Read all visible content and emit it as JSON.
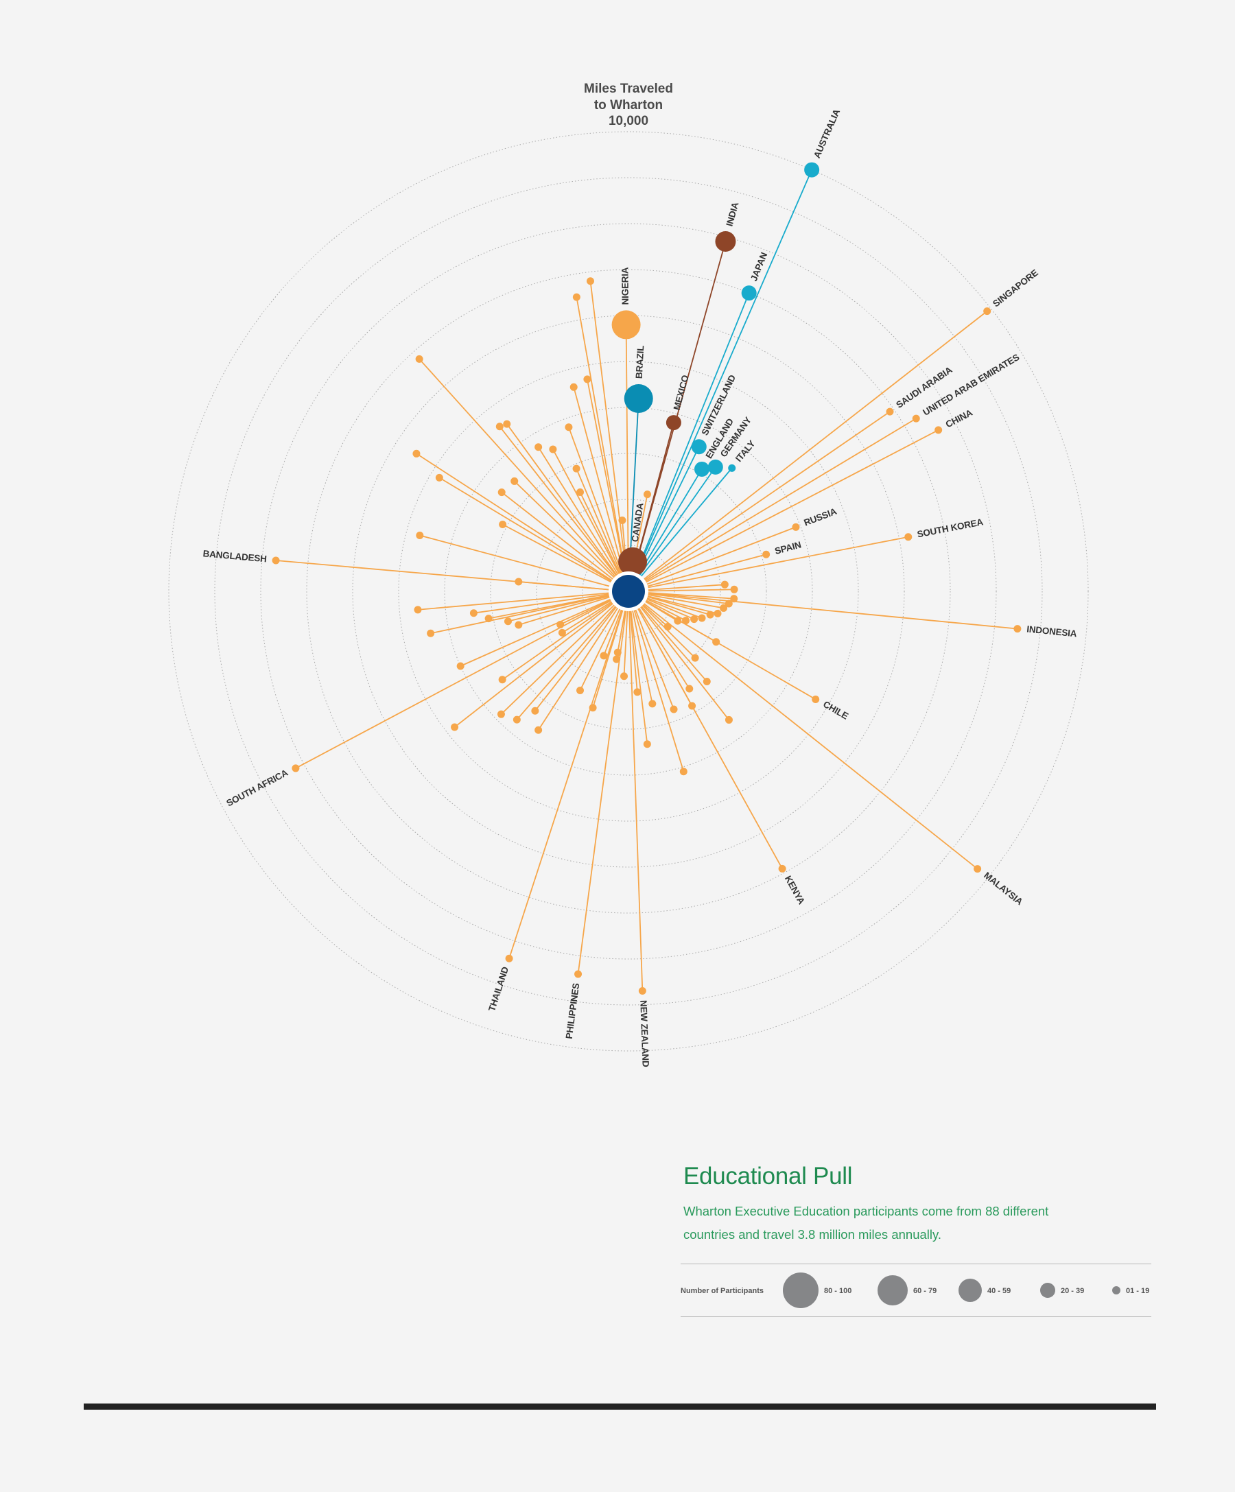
{
  "chart_data": {
    "type": "radial-dot-plot",
    "title_lines": [
      "Miles Traveled",
      "to Wharton",
      "10,000"
    ],
    "radial_axis": {
      "max_miles": 10000,
      "rings": 10,
      "grid": "dotted"
    },
    "colors": {
      "center": "#0a4585",
      "default": "#f6a64a",
      "canada": "#8e4528",
      "brazil": "#0a8db3",
      "nigeria": "#f6a64a",
      "mexico": "#8e4528",
      "india": "#8e4528",
      "japan": "#18abcc",
      "switzerland": "#18abcc",
      "england": "#18abcc",
      "germany": "#18abcc",
      "italy": "#18abcc",
      "australia": "#18abcc"
    },
    "labeled_points": [
      {
        "label": "CANADA",
        "bearing": 8,
        "miles": 650,
        "size": "80-100",
        "color": "canada"
      },
      {
        "label": "BRAZIL",
        "bearing": 3,
        "miles": 4200,
        "size": "80-100",
        "color": "brazil"
      },
      {
        "label": "NIGERIA",
        "bearing": -0.5,
        "miles": 5800,
        "size": "80-100",
        "color": "nigeria"
      },
      {
        "label": "MEXICO",
        "bearing": 15,
        "miles": 3800,
        "size": "20-39",
        "color": "mexico"
      },
      {
        "label": "INDIA",
        "bearing": 15.5,
        "miles": 7900,
        "size": "40-59",
        "color": "india"
      },
      {
        "label": "JAPAN",
        "bearing": 22,
        "miles": 7000,
        "size": "20-39",
        "color": "japan"
      },
      {
        "label": "SWITZERLAND",
        "bearing": 26,
        "miles": 3500,
        "size": "20-39",
        "color": "switzerland"
      },
      {
        "label": "ENGLAND",
        "bearing": 31,
        "miles": 3100,
        "size": "20-39",
        "color": "england"
      },
      {
        "label": "GERMANY",
        "bearing": 35,
        "miles": 3300,
        "size": "20-39",
        "color": "germany"
      },
      {
        "label": "ITALY",
        "bearing": 40,
        "miles": 3500,
        "size": "01-19",
        "color": "italy"
      },
      {
        "label": "AUSTRALIA",
        "bearing": 23.5,
        "miles": 10000,
        "size": "20-39",
        "color": "australia"
      },
      {
        "label": "SINGAPORE",
        "bearing": 52,
        "miles": 9900,
        "size": "01-19"
      },
      {
        "label": "SAUDI ARABIA",
        "bearing": 55.5,
        "miles": 6900,
        "size": "01-19"
      },
      {
        "label": "UNITED ARAB EMIRATES",
        "bearing": 59,
        "miles": 7300,
        "size": "01-19"
      },
      {
        "label": "CHINA",
        "bearing": 62.5,
        "miles": 7600,
        "size": "01-19"
      },
      {
        "label": "RUSSIA",
        "bearing": 69,
        "miles": 3900,
        "size": "01-19"
      },
      {
        "label": "SPAIN",
        "bearing": 75,
        "miles": 3100,
        "size": "01-19"
      },
      {
        "label": "SOUTH KOREA",
        "bearing": 79,
        "miles": 6200,
        "size": "01-19"
      },
      {
        "label": "INDONESIA",
        "bearing": 95.5,
        "miles": 8500,
        "size": "01-19"
      },
      {
        "label": "CHILE",
        "bearing": 120,
        "miles": 4700,
        "size": "01-19"
      },
      {
        "label": "MALAYSIA",
        "bearing": 128.5,
        "miles": 9700,
        "size": "01-19"
      },
      {
        "label": "KENYA",
        "bearing": 151,
        "miles": 6900,
        "size": "01-19"
      },
      {
        "label": "NEW ZEALAND",
        "bearing": 178,
        "miles": 8700,
        "size": "01-19"
      },
      {
        "label": "PHILIPPINES",
        "bearing": 187.5,
        "miles": 8400,
        "size": "01-19"
      },
      {
        "label": "THAILAND",
        "bearing": 198,
        "miles": 8400,
        "size": "01-19"
      },
      {
        "label": "SOUTH AFRICA",
        "bearing": 242,
        "miles": 8200,
        "size": "01-19"
      },
      {
        "label": "BANGLADESH",
        "bearing": 275,
        "miles": 7700,
        "size": "01-19"
      }
    ],
    "unlabeled_points": [
      [
        11,
        2150
      ],
      [
        86,
        2100
      ],
      [
        89,
        2300
      ],
      [
        94,
        2300
      ],
      [
        97,
        2200
      ],
      [
        100,
        2100
      ],
      [
        104,
        2000
      ],
      [
        106,
        1850
      ],
      [
        110,
        1700
      ],
      [
        113,
        1550
      ],
      [
        117,
        1400
      ],
      [
        121,
        1250
      ],
      [
        132,
        1150
      ],
      [
        135,
        2050
      ],
      [
        139,
        2600
      ],
      [
        142,
        3550
      ],
      [
        148,
        2500
      ],
      [
        151,
        2850
      ],
      [
        159,
        2750
      ],
      [
        163,
        4100
      ],
      [
        168,
        2500
      ],
      [
        173,
        3350
      ],
      [
        175,
        2200
      ],
      [
        183,
        1850
      ],
      [
        190,
        1350
      ],
      [
        197,
        2650
      ],
      [
        201,
        1500
      ],
      [
        206,
        2400
      ],
      [
        213,
        3600
      ],
      [
        218,
        3300
      ],
      [
        221,
        3700
      ],
      [
        226,
        3850
      ],
      [
        232,
        4800
      ],
      [
        235,
        3350
      ],
      [
        238,
        1700
      ],
      [
        244,
        1650
      ],
      [
        246,
        4000
      ],
      [
        253,
        2500
      ],
      [
        258,
        4400
      ],
      [
        259,
        3100
      ],
      [
        262,
        3400
      ],
      [
        265,
        4600
      ],
      [
        275,
        2400
      ],
      [
        285,
        4700
      ],
      [
        298,
        3100
      ],
      [
        301,
        4800
      ],
      [
        308,
        3500
      ],
      [
        314,
        3450
      ],
      [
        318,
        6800
      ],
      [
        322,
        4550
      ],
      [
        328,
        3700
      ],
      [
        334,
        2400
      ],
      [
        340,
        3800
      ],
      [
        345,
        4600
      ],
      [
        349,
        4700
      ],
      [
        350,
        6500
      ],
      [
        353,
        6800
      ],
      [
        355,
        1550
      ],
      [
        303,
        5500
      ],
      [
        324,
        4500
      ],
      [
        332,
        3500
      ],
      [
        337,
        2900
      ],
      [
        120,
        2200
      ],
      [
        190,
        1500
      ],
      [
        256,
        2700
      ]
    ],
    "center": {
      "label": "",
      "size": "100+"
    }
  },
  "info": {
    "heading": "Educational Pull",
    "description": "Wharton Executive Education participants come from 88 different countries and travel 3.8 million miles annually."
  },
  "legend": {
    "title": "Number of Participants",
    "color": "#858688",
    "items": [
      {
        "label": "80 - 100",
        "size": "80-100"
      },
      {
        "label": "60 - 79",
        "size": "60-79"
      },
      {
        "label": "40 - 59",
        "size": "40-59"
      },
      {
        "label": "20 - 39",
        "size": "20-39"
      },
      {
        "label": "01 - 19",
        "size": "01-19"
      }
    ]
  }
}
